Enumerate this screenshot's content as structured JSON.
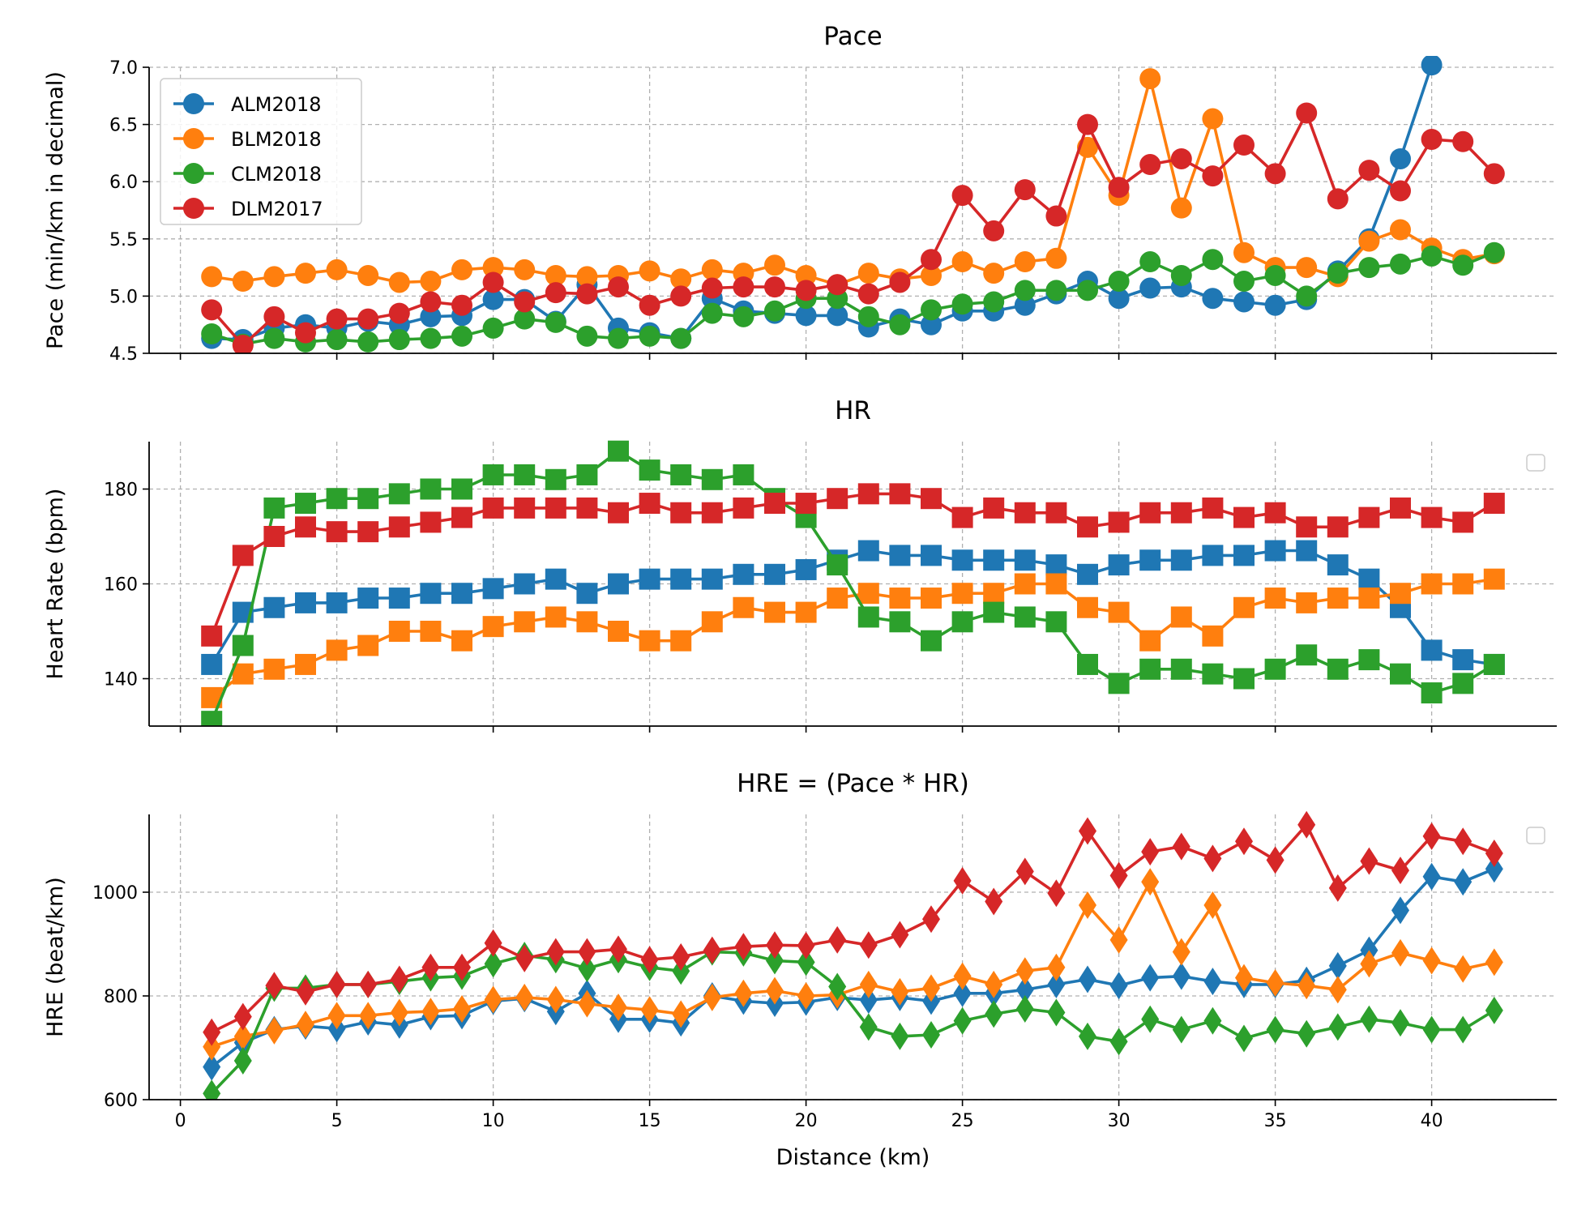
{
  "colors": {
    "ALM2018": "#1f77b4",
    "BLM2018": "#ff7f0e",
    "CLM2018": "#2ca02c",
    "DLM2017": "#d62728"
  },
  "chart_data": [
    {
      "type": "line",
      "title": "Pace",
      "xlabel": "",
      "ylabel": "Pace (min/km in decimal)",
      "xlim": [
        -1,
        44
      ],
      "ylim": [
        4.5,
        7.0
      ],
      "xticks": [
        0,
        5,
        10,
        15,
        20,
        25,
        30,
        35,
        40
      ],
      "yticks": [
        4.5,
        5.0,
        5.5,
        6.0,
        6.5,
        7.0
      ],
      "ytick_labels": [
        "4.5",
        "5.0",
        "5.5",
        "6.0",
        "6.5",
        "7.0"
      ],
      "show_xtick_labels": false,
      "grid": true,
      "marker": "circle",
      "legend": {
        "placement": "upper-left",
        "entries": [
          "ALM2018",
          "BLM2018",
          "CLM2018",
          "DLM2017"
        ]
      },
      "x": [
        1,
        2,
        3,
        4,
        5,
        6,
        7,
        8,
        9,
        10,
        11,
        12,
        13,
        14,
        15,
        16,
        17,
        18,
        19,
        20,
        21,
        22,
        23,
        24,
        25,
        26,
        27,
        28,
        29,
        30,
        31,
        32,
        33,
        34,
        35,
        36,
        37,
        38,
        39,
        40,
        41,
        42
      ],
      "series": [
        {
          "name": "ALM2018",
          "values": [
            4.63,
            4.62,
            4.72,
            4.75,
            4.72,
            4.78,
            4.75,
            4.82,
            4.83,
            4.97,
            4.97,
            4.78,
            5.1,
            4.72,
            4.68,
            4.63,
            4.98,
            4.87,
            4.85,
            4.83,
            4.83,
            4.73,
            4.8,
            4.75,
            4.87,
            4.87,
            4.92,
            5.02,
            5.13,
            4.98,
            5.07,
            5.08,
            4.98,
            4.95,
            4.92,
            4.97,
            5.22,
            5.5,
            6.2,
            7.02,
            null,
            null
          ]
        },
        {
          "name": "BLM2018",
          "values": [
            5.17,
            5.13,
            5.17,
            5.2,
            5.23,
            5.18,
            5.12,
            5.13,
            5.23,
            5.25,
            5.23,
            5.18,
            5.17,
            5.18,
            5.22,
            5.15,
            5.23,
            5.2,
            5.27,
            5.18,
            5.1,
            5.2,
            5.15,
            5.18,
            5.3,
            5.2,
            5.3,
            5.33,
            6.3,
            5.88,
            6.9,
            5.77,
            6.55,
            5.38,
            5.25,
            5.25,
            5.17,
            5.48,
            5.58,
            5.42,
            5.32,
            5.37
          ]
        },
        {
          "name": "CLM2018",
          "values": [
            4.67,
            4.58,
            4.63,
            4.6,
            4.62,
            4.6,
            4.62,
            4.63,
            4.65,
            4.72,
            4.8,
            4.77,
            4.65,
            4.63,
            4.65,
            4.63,
            4.85,
            4.82,
            4.87,
            4.98,
            4.98,
            4.82,
            4.75,
            4.88,
            4.93,
            4.95,
            5.05,
            5.05,
            5.05,
            5.13,
            5.3,
            5.18,
            5.32,
            5.13,
            5.18,
            5.0,
            5.2,
            5.25,
            5.28,
            5.35,
            5.27,
            5.38
          ]
        },
        {
          "name": "DLM2017",
          "values": [
            4.88,
            4.57,
            4.82,
            4.68,
            4.8,
            4.8,
            4.85,
            4.95,
            4.92,
            5.12,
            4.95,
            5.03,
            5.02,
            5.08,
            4.92,
            5.0,
            5.07,
            5.08,
            5.08,
            5.05,
            5.1,
            5.02,
            5.12,
            5.32,
            5.88,
            5.57,
            5.93,
            5.7,
            6.5,
            5.95,
            6.15,
            6.2,
            6.05,
            6.32,
            6.07,
            6.6,
            5.85,
            6.1,
            5.92,
            6.37,
            6.35,
            6.07
          ]
        }
      ]
    },
    {
      "type": "line",
      "title": "HR",
      "xlabel": "",
      "ylabel": "Heart Rate (bpm)",
      "xlim": [
        -1,
        44
      ],
      "ylim": [
        130,
        190
      ],
      "xticks": [
        0,
        5,
        10,
        15,
        20,
        25,
        30,
        35,
        40
      ],
      "yticks": [
        140,
        160,
        180
      ],
      "ytick_labels": [
        "140",
        "160",
        "180"
      ],
      "show_xtick_labels": false,
      "grid": true,
      "marker": "square",
      "legend": {
        "placement": "right-empty",
        "entries": []
      },
      "x": [
        1,
        2,
        3,
        4,
        5,
        6,
        7,
        8,
        9,
        10,
        11,
        12,
        13,
        14,
        15,
        16,
        17,
        18,
        19,
        20,
        21,
        22,
        23,
        24,
        25,
        26,
        27,
        28,
        29,
        30,
        31,
        32,
        33,
        34,
        35,
        36,
        37,
        38,
        39,
        40,
        41,
        42
      ],
      "series": [
        {
          "name": "ALM2018",
          "values": [
            143,
            154,
            155,
            156,
            156,
            157,
            157,
            158,
            158,
            159,
            160,
            161,
            158,
            160,
            161,
            161,
            161,
            162,
            162,
            163,
            165,
            167,
            166,
            166,
            165,
            165,
            165,
            164,
            162,
            164,
            165,
            165,
            166,
            166,
            167,
            167,
            164,
            161,
            155,
            146,
            144,
            143
          ]
        },
        {
          "name": "BLM2018",
          "values": [
            136,
            141,
            142,
            143,
            146,
            147,
            150,
            150,
            148,
            151,
            152,
            153,
            152,
            150,
            148,
            148,
            152,
            155,
            154,
            154,
            157,
            158,
            157,
            157,
            158,
            158,
            160,
            160,
            155,
            154,
            148,
            153,
            149,
            155,
            157,
            156,
            157,
            157,
            158,
            160,
            160,
            161
          ]
        },
        {
          "name": "CLM2018",
          "values": [
            131,
            147,
            176,
            177,
            178,
            178,
            179,
            180,
            180,
            183,
            183,
            182,
            183,
            188,
            184,
            183,
            182,
            183,
            178,
            174,
            164,
            153,
            152,
            148,
            152,
            154,
            153,
            152,
            143,
            139,
            142,
            142,
            141,
            140,
            142,
            145,
            142,
            144,
            141,
            137,
            139,
            143
          ]
        },
        {
          "name": "DLM2017",
          "values": [
            149,
            166,
            170,
            172,
            171,
            171,
            172,
            173,
            174,
            176,
            176,
            176,
            176,
            175,
            177,
            175,
            175,
            176,
            177,
            177,
            178,
            179,
            179,
            178,
            174,
            176,
            175,
            175,
            172,
            173,
            175,
            175,
            176,
            174,
            175,
            172,
            172,
            174,
            176,
            174,
            173,
            177
          ]
        }
      ]
    },
    {
      "type": "line",
      "title": "HRE = (Pace * HR)",
      "xlabel": "Distance (km)",
      "ylabel": "HRE (beat/km)",
      "xlim": [
        -1,
        44
      ],
      "ylim": [
        600,
        1150
      ],
      "xticks": [
        0,
        5,
        10,
        15,
        20,
        25,
        30,
        35,
        40
      ],
      "yticks": [
        600,
        800,
        1000
      ],
      "ytick_labels": [
        "600",
        "800",
        "1000"
      ],
      "show_xtick_labels": true,
      "grid": true,
      "marker": "diamond",
      "legend": {
        "placement": "right-empty",
        "entries": []
      },
      "x": [
        1,
        2,
        3,
        4,
        5,
        6,
        7,
        8,
        9,
        10,
        11,
        12,
        13,
        14,
        15,
        16,
        17,
        18,
        19,
        20,
        21,
        22,
        23,
        24,
        25,
        26,
        27,
        28,
        29,
        30,
        31,
        32,
        33,
        34,
        35,
        36,
        37,
        38,
        39,
        40,
        41,
        42
      ],
      "series": [
        {
          "name": "ALM2018",
          "values": [
            663,
            710,
            735,
            742,
            737,
            750,
            744,
            760,
            762,
            790,
            795,
            770,
            805,
            755,
            755,
            748,
            800,
            790,
            786,
            788,
            797,
            792,
            797,
            790,
            805,
            805,
            812,
            822,
            832,
            820,
            835,
            838,
            828,
            822,
            822,
            830,
            858,
            888,
            965,
            1030,
            1020,
            1045
          ]
        },
        {
          "name": "BLM2018",
          "values": [
            702,
            722,
            733,
            745,
            762,
            762,
            768,
            770,
            775,
            793,
            797,
            793,
            785,
            778,
            773,
            765,
            797,
            805,
            810,
            800,
            802,
            822,
            808,
            815,
            838,
            822,
            848,
            855,
            975,
            908,
            1020,
            885,
            975,
            835,
            825,
            820,
            812,
            862,
            883,
            868,
            852,
            865
          ]
        },
        {
          "name": "CLM2018",
          "values": [
            612,
            675,
            815,
            815,
            822,
            822,
            828,
            835,
            838,
            862,
            878,
            870,
            853,
            870,
            855,
            848,
            885,
            883,
            868,
            865,
            818,
            740,
            722,
            725,
            752,
            765,
            775,
            768,
            722,
            712,
            755,
            735,
            752,
            718,
            735,
            727,
            740,
            755,
            748,
            735,
            735,
            772
          ]
        },
        {
          "name": "DLM2017",
          "values": [
            730,
            760,
            820,
            808,
            822,
            822,
            832,
            855,
            855,
            902,
            872,
            885,
            885,
            890,
            870,
            875,
            888,
            895,
            898,
            897,
            908,
            898,
            918,
            948,
            1022,
            982,
            1040,
            998,
            1118,
            1032,
            1078,
            1088,
            1065,
            1098,
            1062,
            1130,
            1008,
            1060,
            1042,
            1108,
            1098,
            1075
          ]
        }
      ]
    }
  ]
}
